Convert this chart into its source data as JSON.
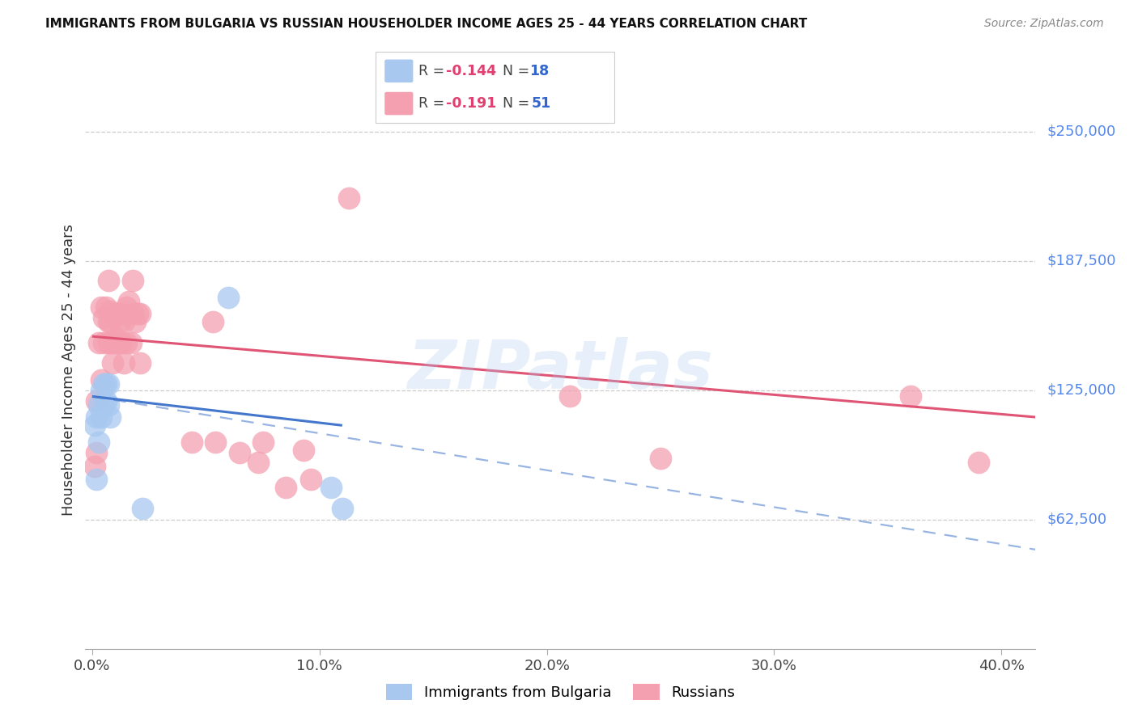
{
  "title": "IMMIGRANTS FROM BULGARIA VS RUSSIAN HOUSEHOLDER INCOME AGES 25 - 44 YEARS CORRELATION CHART",
  "source": "Source: ZipAtlas.com",
  "ylabel": "Householder Income Ages 25 - 44 years",
  "ytick_labels": [
    "$62,500",
    "$125,000",
    "$187,500",
    "$250,000"
  ],
  "ytick_vals": [
    62500,
    125000,
    187500,
    250000
  ],
  "ylim": [
    0,
    270000
  ],
  "xlim": [
    -0.003,
    0.415
  ],
  "r_bulgaria": -0.144,
  "n_bulgaria": 18,
  "r_russian": -0.191,
  "n_russian": 51,
  "legend_label_bulgaria": "Immigrants from Bulgaria",
  "legend_label_russian": "Russians",
  "color_bulgaria": "#a8c8f0",
  "color_russian": "#f4a0b0",
  "trendline_bulgaria_solid_color": "#4477cc",
  "trendline_russian_solid_color": "#e05575",
  "watermark": "ZIPatlas",
  "xlabel_ticks": [
    "0.0%",
    "10.0%",
    "20.0%",
    "30.0%",
    "40.0%"
  ],
  "xlabel_tick_vals": [
    0.0,
    0.1,
    0.2,
    0.3,
    0.4
  ],
  "bulgaria_x": [
    0.001,
    0.002,
    0.002,
    0.003,
    0.003,
    0.004,
    0.004,
    0.005,
    0.005,
    0.006,
    0.006,
    0.007,
    0.007,
    0.008,
    0.022,
    0.06,
    0.105,
    0.11
  ],
  "bulgaria_y": [
    108000,
    82000,
    112000,
    118000,
    100000,
    125000,
    112000,
    128000,
    118000,
    120000,
    128000,
    118000,
    128000,
    112000,
    68000,
    170000,
    78000,
    68000
  ],
  "russian_x": [
    0.001,
    0.002,
    0.002,
    0.003,
    0.004,
    0.004,
    0.005,
    0.005,
    0.006,
    0.007,
    0.007,
    0.007,
    0.008,
    0.008,
    0.008,
    0.009,
    0.009,
    0.01,
    0.01,
    0.011,
    0.011,
    0.012,
    0.012,
    0.013,
    0.013,
    0.014,
    0.014,
    0.015,
    0.015,
    0.016,
    0.017,
    0.018,
    0.018,
    0.019,
    0.02,
    0.021,
    0.021,
    0.044,
    0.053,
    0.054,
    0.065,
    0.073,
    0.075,
    0.085,
    0.093,
    0.096,
    0.113,
    0.21,
    0.25,
    0.36,
    0.39
  ],
  "russian_y": [
    88000,
    120000,
    95000,
    148000,
    130000,
    165000,
    160000,
    148000,
    165000,
    178000,
    158000,
    148000,
    163000,
    148000,
    158000,
    148000,
    138000,
    162000,
    150000,
    148000,
    162000,
    158000,
    148000,
    162000,
    148000,
    158000,
    138000,
    165000,
    148000,
    168000,
    148000,
    162000,
    178000,
    158000,
    162000,
    162000,
    138000,
    100000,
    158000,
    100000,
    95000,
    90000,
    100000,
    78000,
    96000,
    82000,
    218000,
    122000,
    92000,
    122000,
    90000
  ],
  "trendline_russian_x0": 0.0,
  "trendline_russian_x1": 0.415,
  "trendline_russian_y0": 151000,
  "trendline_russian_y1": 112000,
  "trendline_bulg_solid_x0": 0.0,
  "trendline_bulg_solid_x1": 0.11,
  "trendline_bulg_y0": 122000,
  "trendline_bulg_y1": 108000,
  "trendline_bulg_dash_x0": 0.0,
  "trendline_bulg_dash_x1": 0.415,
  "trendline_bulg_dash_y0": 122000,
  "trendline_bulg_dash_y1": 48000
}
